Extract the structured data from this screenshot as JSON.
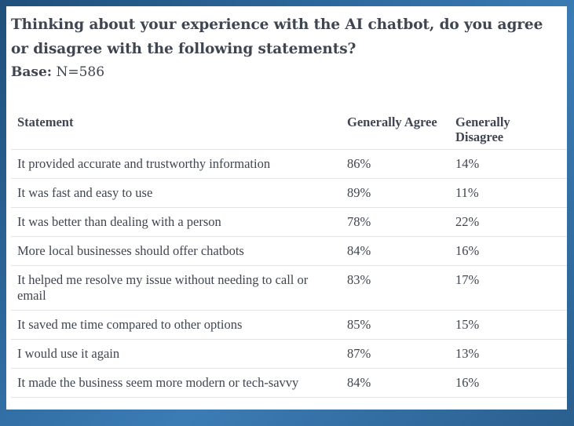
{
  "survey": {
    "question": "Thinking about your experience with the AI chatbot, do you agree or disagree with the following statements?",
    "base_label": "Base:",
    "base_value": " N=586"
  },
  "table": {
    "headers": [
      "Statement",
      "Generally Agree",
      "Generally Disagree"
    ],
    "rows": [
      {
        "statement": "It provided accurate and trustworthy information",
        "agree": "86%",
        "disagree": "14%"
      },
      {
        "statement": "It was fast and easy to use",
        "agree": "89%",
        "disagree": "11%"
      },
      {
        "statement": "It was better than dealing with a person",
        "agree": "78%",
        "disagree": "22%"
      },
      {
        "statement": "More local businesses should offer chatbots",
        "agree": "84%",
        "disagree": "16%"
      },
      {
        "statement": "It helped me resolve my issue without needing to call or email",
        "agree": "83%",
        "disagree": "17%"
      },
      {
        "statement": "It saved me time compared to other options",
        "agree": "85%",
        "disagree": "15%"
      },
      {
        "statement": "I would use it again",
        "agree": "87%",
        "disagree": "13%"
      },
      {
        "statement": "It made the business seem more modern or tech-savvy",
        "agree": "84%",
        "disagree": "16%"
      }
    ]
  }
}
